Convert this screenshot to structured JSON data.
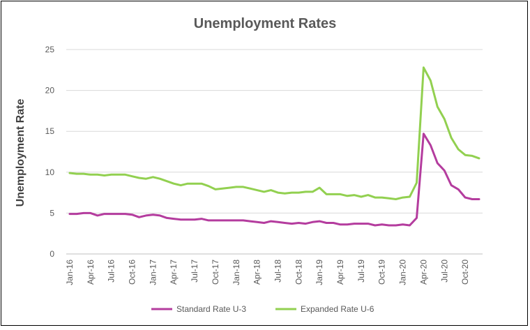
{
  "chart_data": {
    "type": "line",
    "title": "Unemployment Rates",
    "xlabel": "",
    "ylabel": "Unemployment Rate",
    "ylim": [
      0,
      25
    ],
    "yticks": [
      "0",
      "5",
      "10",
      "15",
      "20",
      "25"
    ],
    "grid": true,
    "legend_position": "bottom",
    "x": [
      "Jan-16",
      "Feb-16",
      "Mar-16",
      "Apr-16",
      "May-16",
      "Jun-16",
      "Jul-16",
      "Aug-16",
      "Sep-16",
      "Oct-16",
      "Nov-16",
      "Dec-16",
      "Jan-17",
      "Feb-17",
      "Mar-17",
      "Apr-17",
      "May-17",
      "Jun-17",
      "Jul-17",
      "Aug-17",
      "Sep-17",
      "Oct-17",
      "Nov-17",
      "Dec-17",
      "Jan-18",
      "Feb-18",
      "Mar-18",
      "Apr-18",
      "May-18",
      "Jun-18",
      "Jul-18",
      "Aug-18",
      "Sep-18",
      "Oct-18",
      "Nov-18",
      "Dec-18",
      "Jan-19",
      "Feb-19",
      "Mar-19",
      "Apr-19",
      "May-19",
      "Jun-19",
      "Jul-19",
      "Aug-19",
      "Sep-19",
      "Oct-19",
      "Nov-19",
      "Dec-19",
      "Jan-20",
      "Feb-20",
      "Mar-20",
      "Apr-20",
      "May-20",
      "Jun-20",
      "Jul-20",
      "Aug-20",
      "Sep-20",
      "Oct-20",
      "Nov-20",
      "Dec-20"
    ],
    "xtick_labels": [
      "Jan-16",
      "Apr-16",
      "Jul-16",
      "Oct-16",
      "Jan-17",
      "Apr-17",
      "Jul-17",
      "Oct-17",
      "Jan-18",
      "Apr-18",
      "Jul-18",
      "Oct-18",
      "Jan-19",
      "Apr-19",
      "Jul-19",
      "Oct-19",
      "Jan-20",
      "Apr-20",
      "Jul-20",
      "Oct-20"
    ],
    "series": [
      {
        "name": "Standard Rate U-3",
        "color": "#b43c9e",
        "values": [
          4.9,
          4.9,
          5.0,
          5.0,
          4.7,
          4.9,
          4.9,
          4.9,
          4.9,
          4.8,
          4.5,
          4.7,
          4.8,
          4.7,
          4.4,
          4.3,
          4.2,
          4.2,
          4.2,
          4.3,
          4.1,
          4.1,
          4.1,
          4.1,
          4.1,
          4.1,
          4.0,
          3.9,
          3.8,
          4.0,
          3.9,
          3.8,
          3.7,
          3.8,
          3.7,
          3.9,
          4.0,
          3.8,
          3.8,
          3.6,
          3.6,
          3.7,
          3.7,
          3.7,
          3.5,
          3.6,
          3.5,
          3.5,
          3.6,
          3.5,
          4.4,
          14.7,
          13.3,
          11.1,
          10.2,
          8.4,
          7.9,
          6.9,
          6.7,
          6.7
        ]
      },
      {
        "name": "Expanded Rate U-6",
        "color": "#92d050",
        "values": [
          9.9,
          9.8,
          9.8,
          9.7,
          9.7,
          9.6,
          9.7,
          9.7,
          9.7,
          9.5,
          9.3,
          9.2,
          9.4,
          9.2,
          8.9,
          8.6,
          8.4,
          8.6,
          8.6,
          8.6,
          8.3,
          7.9,
          8.0,
          8.1,
          8.2,
          8.2,
          8.0,
          7.8,
          7.6,
          7.8,
          7.5,
          7.4,
          7.5,
          7.5,
          7.6,
          7.6,
          8.1,
          7.3,
          7.3,
          7.3,
          7.1,
          7.2,
          7.0,
          7.2,
          6.9,
          6.9,
          6.8,
          6.7,
          6.9,
          7.0,
          8.7,
          22.8,
          21.2,
          18.0,
          16.5,
          14.2,
          12.8,
          12.1,
          12.0,
          11.7
        ]
      }
    ]
  }
}
